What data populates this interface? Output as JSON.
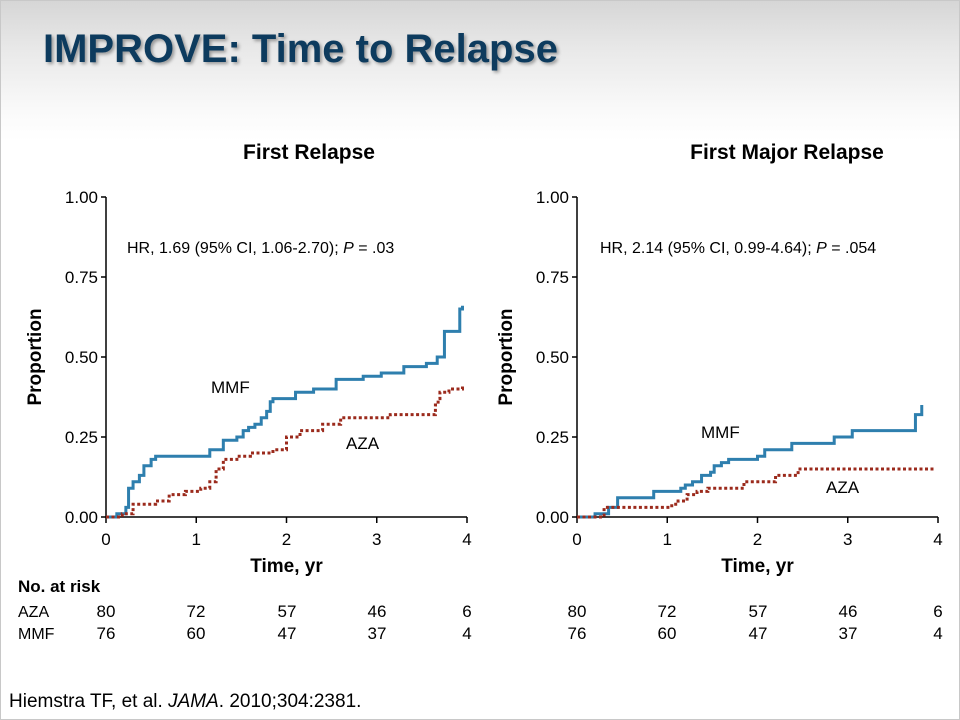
{
  "slide": {
    "title": "IMPROVE: Time to Relapse",
    "citation": {
      "authors": "Hiemstra TF, et al. ",
      "journal": "JAMA",
      "details": ". 2010;304:2381."
    }
  },
  "colors": {
    "title": "#0d3b5e",
    "mmf": "#2e7fae",
    "aza": "#9b2a1c",
    "axis": "#000000"
  },
  "risk_table": {
    "header": "No. at risk",
    "rows": [
      {
        "label": "AZA",
        "left": [
          "80",
          "72",
          "57",
          "46",
          "6"
        ],
        "right": [
          "80",
          "72",
          "57",
          "46",
          "6"
        ]
      },
      {
        "label": "MMF",
        "left": [
          "76",
          "60",
          "47",
          "37",
          "4"
        ],
        "right": [
          "76",
          "60",
          "47",
          "37",
          "4"
        ]
      }
    ]
  },
  "chart_data": [
    {
      "type": "line",
      "step": true,
      "title": "First Relapse",
      "xlabel": "Time, yr",
      "ylabel": "Proportion",
      "xlim": [
        0,
        4
      ],
      "ylim": [
        0,
        1
      ],
      "xticks": [
        "0",
        "1",
        "2",
        "3",
        "4"
      ],
      "yticks": [
        "0.00",
        "0.25",
        "0.50",
        "0.75",
        "1.00"
      ],
      "annotation": {
        "prefix": "HR, 1.69 (95% CI, 1.06-2.70); ",
        "p_label": "P",
        "suffix": " = .03"
      },
      "series": [
        {
          "name": "MMF",
          "style": "solid",
          "x": [
            0,
            0.12,
            0.22,
            0.25,
            0.3,
            0.37,
            0.42,
            0.5,
            0.55,
            1.15,
            1.3,
            1.45,
            1.52,
            1.58,
            1.65,
            1.72,
            1.78,
            1.82,
            1.85,
            2.1,
            2.3,
            2.55,
            2.85,
            3.05,
            3.3,
            3.55,
            3.62,
            3.67,
            3.72,
            3.75,
            3.92,
            3.95
          ],
          "y": [
            0,
            0.01,
            0.03,
            0.09,
            0.11,
            0.13,
            0.16,
            0.18,
            0.19,
            0.21,
            0.24,
            0.25,
            0.27,
            0.28,
            0.29,
            0.31,
            0.33,
            0.36,
            0.37,
            0.39,
            0.4,
            0.43,
            0.44,
            0.45,
            0.47,
            0.48,
            0.48,
            0.5,
            0.5,
            0.58,
            0.65,
            0.66
          ]
        },
        {
          "name": "AZA",
          "style": "dashed",
          "x": [
            0,
            0.18,
            0.3,
            0.55,
            0.7,
            0.88,
            1.05,
            1.15,
            1.22,
            1.3,
            1.45,
            1.6,
            1.75,
            1.85,
            2.0,
            2.15,
            2.4,
            2.6,
            3.15,
            3.6,
            3.65,
            3.68,
            3.7,
            3.8,
            3.95
          ],
          "y": [
            0,
            0.01,
            0.04,
            0.05,
            0.07,
            0.08,
            0.09,
            0.11,
            0.15,
            0.18,
            0.19,
            0.2,
            0.2,
            0.21,
            0.25,
            0.27,
            0.29,
            0.31,
            0.32,
            0.32,
            0.35,
            0.37,
            0.39,
            0.4,
            0.41
          ]
        }
      ]
    },
    {
      "type": "line",
      "step": true,
      "title": "First Major Relapse",
      "xlabel": "Time, yr",
      "ylabel": "Proportion",
      "xlim": [
        0,
        4
      ],
      "ylim": [
        0,
        1
      ],
      "xticks": [
        "0",
        "1",
        "2",
        "3",
        "4"
      ],
      "yticks": [
        "0.00",
        "0.25",
        "0.50",
        "0.75",
        "1.00"
      ],
      "annotation": {
        "prefix": "HR, 2.14 (95% CI, 0.99-4.64); ",
        "p_label": "P",
        "suffix": " = .054"
      },
      "series": [
        {
          "name": "MMF",
          "style": "solid",
          "x": [
            0,
            0.2,
            0.35,
            0.45,
            0.6,
            0.85,
            1.15,
            1.2,
            1.28,
            1.38,
            1.48,
            1.52,
            1.6,
            1.68,
            2.0,
            2.08,
            2.38,
            2.85,
            3.05,
            3.35,
            3.75,
            3.82
          ],
          "y": [
            0,
            0.01,
            0.03,
            0.06,
            0.06,
            0.08,
            0.09,
            0.1,
            0.11,
            0.13,
            0.14,
            0.16,
            0.17,
            0.18,
            0.19,
            0.21,
            0.23,
            0.25,
            0.27,
            0.27,
            0.32,
            0.35
          ]
        },
        {
          "name": "AZA",
          "style": "dashed",
          "x": [
            0,
            0.3,
            0.6,
            1.05,
            1.12,
            1.22,
            1.33,
            1.45,
            1.85,
            2.0,
            2.2,
            2.45,
            3.95
          ],
          "y": [
            0,
            0.03,
            0.03,
            0.04,
            0.05,
            0.07,
            0.08,
            0.09,
            0.11,
            0.11,
            0.13,
            0.15,
            0.15
          ]
        }
      ]
    }
  ]
}
